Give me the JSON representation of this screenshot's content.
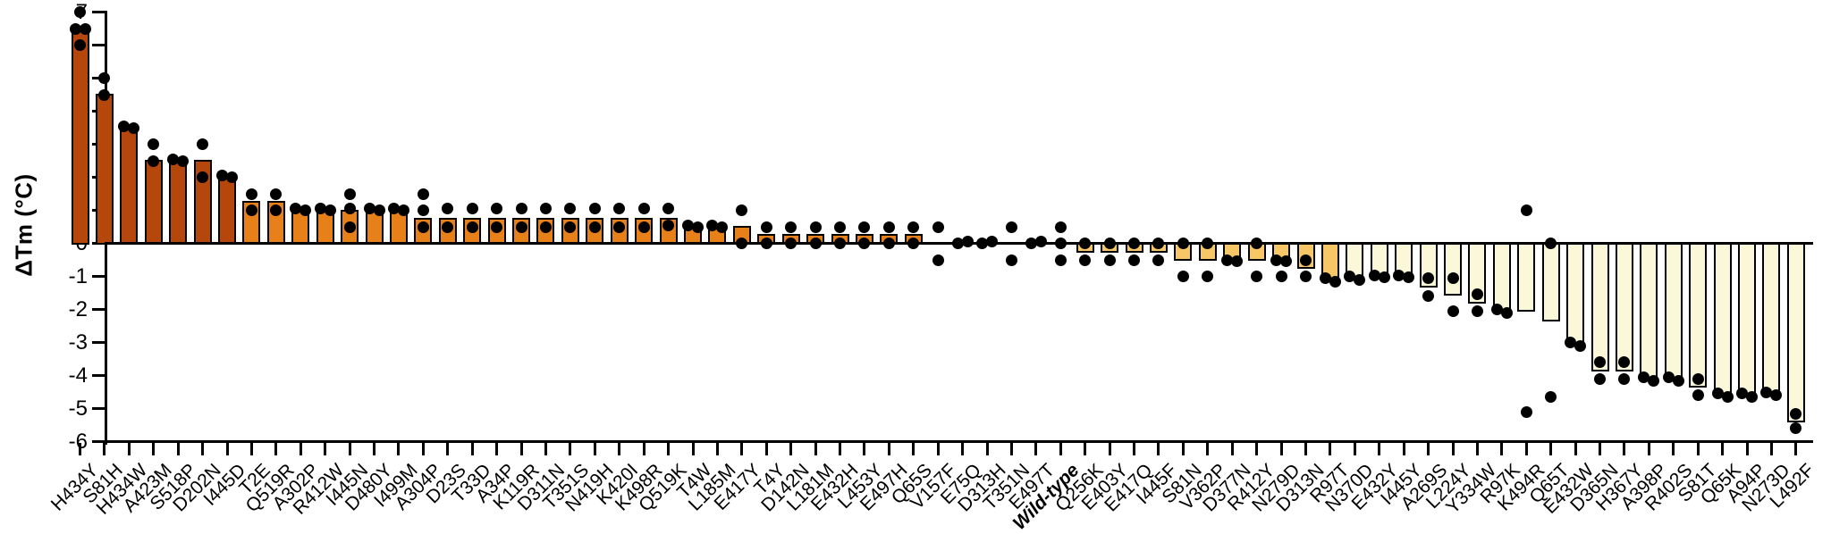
{
  "chart_data": {
    "type": "bar",
    "title": "",
    "ylabel": "ΔTm (°C)",
    "xlabel": "",
    "ylim": [
      -6,
      7
    ],
    "yticks": [
      7,
      6,
      5,
      4,
      3,
      2,
      1,
      0,
      -1,
      -2,
      -3,
      -4,
      -5,
      -6
    ],
    "grid": false,
    "legend": "none",
    "palette": {
      "strong": "#b5470d",
      "moderate": "#e8801a",
      "mild": "#f7c667",
      "pale": "#fbf8da",
      "points": "#000000",
      "axis": "#000000"
    },
    "series": [
      {
        "label": "H434Y",
        "value": 6.5,
        "points": [
          7.0,
          6.5,
          6.5,
          6.0
        ],
        "color": "strong"
      },
      {
        "label": "S81H",
        "value": 4.5,
        "points": [
          5.0,
          4.5
        ],
        "color": "strong"
      },
      {
        "label": "H434W",
        "value": 3.5,
        "points": [
          3.55,
          3.5
        ],
        "color": "strong"
      },
      {
        "label": "A423M",
        "value": 2.5,
        "points": [
          3.0,
          2.5
        ],
        "color": "strong"
      },
      {
        "label": "S518P",
        "value": 2.5,
        "points": [
          2.55,
          2.5
        ],
        "color": "strong"
      },
      {
        "label": "D202N",
        "value": 2.5,
        "points": [
          3.0,
          2.0
        ],
        "color": "strong"
      },
      {
        "label": "I445D",
        "value": 2.0,
        "points": [
          2.05,
          2.0
        ],
        "color": "strong"
      },
      {
        "label": "T2E",
        "value": 1.25,
        "points": [
          1.5,
          1.0
        ],
        "color": "moderate"
      },
      {
        "label": "Q519R",
        "value": 1.25,
        "points": [
          1.5,
          1.0
        ],
        "color": "moderate"
      },
      {
        "label": "A302P",
        "value": 1.0,
        "points": [
          1.05,
          1.0
        ],
        "color": "moderate"
      },
      {
        "label": "R412W",
        "value": 1.0,
        "points": [
          1.05,
          1.0
        ],
        "color": "moderate"
      },
      {
        "label": "I445N",
        "value": 1.0,
        "points": [
          1.5,
          1.05,
          0.5
        ],
        "color": "moderate"
      },
      {
        "label": "D480Y",
        "value": 1.0,
        "points": [
          1.05,
          1.0
        ],
        "color": "moderate"
      },
      {
        "label": "I499M",
        "value": 1.0,
        "points": [
          1.05,
          1.0
        ],
        "color": "moderate"
      },
      {
        "label": "A304P",
        "value": 0.75,
        "points": [
          1.5,
          1.0,
          0.5
        ],
        "color": "moderate"
      },
      {
        "label": "D23S",
        "value": 0.75,
        "points": [
          1.05,
          0.5
        ],
        "color": "moderate"
      },
      {
        "label": "T33D",
        "value": 0.75,
        "points": [
          1.05,
          0.5
        ],
        "color": "moderate"
      },
      {
        "label": "A34P",
        "value": 0.75,
        "points": [
          1.05,
          0.5
        ],
        "color": "moderate"
      },
      {
        "label": "K119R",
        "value": 0.75,
        "points": [
          1.05,
          0.5
        ],
        "color": "moderate"
      },
      {
        "label": "D311N",
        "value": 0.75,
        "points": [
          1.05,
          0.5
        ],
        "color": "moderate"
      },
      {
        "label": "T351S",
        "value": 0.75,
        "points": [
          1.05,
          0.5
        ],
        "color": "moderate"
      },
      {
        "label": "N419H",
        "value": 0.75,
        "points": [
          1.05,
          0.5
        ],
        "color": "moderate"
      },
      {
        "label": "K420I",
        "value": 0.75,
        "points": [
          1.05,
          0.5
        ],
        "color": "moderate"
      },
      {
        "label": "K498R",
        "value": 0.75,
        "points": [
          1.05,
          0.5
        ],
        "color": "moderate"
      },
      {
        "label": "Q519K",
        "value": 0.75,
        "points": [
          1.05,
          0.55
        ],
        "color": "moderate"
      },
      {
        "label": "T4W",
        "value": 0.5,
        "points": [
          0.55,
          0.5
        ],
        "color": "moderate"
      },
      {
        "label": "L185M",
        "value": 0.5,
        "points": [
          0.55,
          0.5
        ],
        "color": "moderate"
      },
      {
        "label": "E417Y",
        "value": 0.5,
        "points": [
          1.0,
          0.0
        ],
        "color": "moderate"
      },
      {
        "label": "T4Y",
        "value": 0.25,
        "points": [
          0.5,
          0.0
        ],
        "color": "moderate"
      },
      {
        "label": "D142N",
        "value": 0.25,
        "points": [
          0.5,
          0.0
        ],
        "color": "moderate"
      },
      {
        "label": "L181M",
        "value": 0.25,
        "points": [
          0.5,
          0.0
        ],
        "color": "moderate"
      },
      {
        "label": "E432H",
        "value": 0.25,
        "points": [
          0.5,
          0.0
        ],
        "color": "moderate"
      },
      {
        "label": "L453Y",
        "value": 0.25,
        "points": [
          0.5,
          0.0
        ],
        "color": "moderate"
      },
      {
        "label": "E497H",
        "value": 0.25,
        "points": [
          0.5,
          0.0
        ],
        "color": "moderate"
      },
      {
        "label": "Q65S",
        "value": 0.25,
        "points": [
          0.5,
          0.0
        ],
        "color": "moderate"
      },
      {
        "label": "V157F",
        "value": 0,
        "points": [
          0.5,
          -0.5
        ],
        "color": "moderate"
      },
      {
        "label": "E75Q",
        "value": 0,
        "points": [
          0.0,
          0.05
        ],
        "color": "moderate"
      },
      {
        "label": "D313H",
        "value": 0,
        "points": [
          0.0,
          0.05
        ],
        "color": "moderate"
      },
      {
        "label": "T351N",
        "value": 0,
        "points": [
          0.5,
          -0.5
        ],
        "color": "moderate"
      },
      {
        "label": "E497T",
        "value": 0,
        "points": [
          0.0,
          0.05
        ],
        "color": "moderate"
      },
      {
        "label": "Wild-type",
        "value": 0,
        "points": [
          0.5,
          0.0,
          -0.5
        ],
        "color": "moderate",
        "emphasis": true
      },
      {
        "label": "Q256K",
        "value": -0.25,
        "points": [
          0.0,
          -0.5
        ],
        "color": "mild"
      },
      {
        "label": "E403Y",
        "value": -0.25,
        "points": [
          0.0,
          -0.5
        ],
        "color": "mild"
      },
      {
        "label": "E417Q",
        "value": -0.25,
        "points": [
          0.0,
          -0.5
        ],
        "color": "mild"
      },
      {
        "label": "I445F",
        "value": -0.25,
        "points": [
          0.0,
          -0.5
        ],
        "color": "mild"
      },
      {
        "label": "S81N",
        "value": -0.5,
        "points": [
          0.0,
          -1.0
        ],
        "color": "mild"
      },
      {
        "label": "V362P",
        "value": -0.5,
        "points": [
          0.0,
          -1.0
        ],
        "color": "mild"
      },
      {
        "label": "D377N",
        "value": -0.5,
        "points": [
          -0.5,
          -0.55
        ],
        "color": "mild"
      },
      {
        "label": "R412Y",
        "value": -0.5,
        "points": [
          0.0,
          -1.0
        ],
        "color": "mild"
      },
      {
        "label": "N279D",
        "value": -0.55,
        "points": [
          -0.5,
          -0.55,
          -1.0
        ],
        "color": "mild"
      },
      {
        "label": "D313N",
        "value": -0.75,
        "points": [
          -0.5,
          -1.0
        ],
        "color": "mild"
      },
      {
        "label": "R97T",
        "value": -1.1,
        "points": [
          -1.05,
          -1.15
        ],
        "color": "mild"
      },
      {
        "label": "N370D",
        "value": -1.05,
        "points": [
          -1.0,
          -1.1
        ],
        "color": "pale"
      },
      {
        "label": "E432Y",
        "value": -1.0,
        "points": [
          -0.97,
          -1.03
        ],
        "color": "pale"
      },
      {
        "label": "I445Y",
        "value": -1.0,
        "points": [
          -0.97,
          -1.03
        ],
        "color": "pale"
      },
      {
        "label": "A269S",
        "value": -1.3,
        "points": [
          -1.05,
          -1.6
        ],
        "color": "pale"
      },
      {
        "label": "L224Y",
        "value": -1.55,
        "points": [
          -1.05,
          -2.05
        ],
        "color": "pale"
      },
      {
        "label": "Y334W",
        "value": -1.8,
        "points": [
          -1.55,
          -2.05
        ],
        "color": "pale"
      },
      {
        "label": "R97K",
        "value": -2.05,
        "points": [
          -2.0,
          -2.1
        ],
        "color": "pale"
      },
      {
        "label": "K494R",
        "value": -2.05,
        "points": [
          1.0,
          -5.1
        ],
        "color": "pale"
      },
      {
        "label": "Q65T",
        "value": -2.35,
        "points": [
          0.0,
          -4.65
        ],
        "color": "pale"
      },
      {
        "label": "E432W",
        "value": -3.05,
        "points": [
          -3.0,
          -3.1
        ],
        "color": "pale"
      },
      {
        "label": "D365N",
        "value": -3.85,
        "points": [
          -3.6,
          -4.1
        ],
        "color": "pale"
      },
      {
        "label": "H367Y",
        "value": -3.85,
        "points": [
          -3.6,
          -4.1
        ],
        "color": "pale"
      },
      {
        "label": "A398P",
        "value": -4.1,
        "points": [
          -4.05,
          -4.15
        ],
        "color": "pale"
      },
      {
        "label": "R402S",
        "value": -4.1,
        "points": [
          -4.05,
          -4.15
        ],
        "color": "pale"
      },
      {
        "label": "S81T",
        "value": -4.35,
        "points": [
          -4.1,
          -4.6
        ],
        "color": "pale"
      },
      {
        "label": "Q65K",
        "value": -4.6,
        "points": [
          -4.55,
          -4.65
        ],
        "color": "pale"
      },
      {
        "label": "A94P",
        "value": -4.6,
        "points": [
          -4.55,
          -4.65
        ],
        "color": "pale"
      },
      {
        "label": "N273D",
        "value": -4.55,
        "points": [
          -4.5,
          -4.6
        ],
        "color": "pale"
      },
      {
        "label": "L492F",
        "value": -5.4,
        "points": [
          -5.15,
          -5.6
        ],
        "color": "pale"
      }
    ]
  }
}
